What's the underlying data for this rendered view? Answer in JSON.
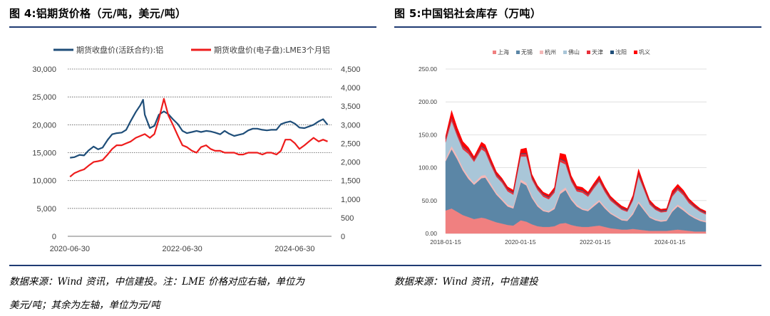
{
  "left": {
    "title": "图 4:铝期货价格（元/吨，美元/吨）",
    "note_line1": "数据来源：Wind 资讯，中信建投。注：LME 价格对应右轴，单位为",
    "note_line2": "美元/吨；其余为左轴，单位为元/吨"
  },
  "right": {
    "title": "图 5:中国铝社会库存（万吨）",
    "note": "数据来源：Wind 资讯，中信建投"
  },
  "chart_data": [
    {
      "type": "line",
      "title": "铝期货价格（元/吨，美元/吨）",
      "x_tick_labels": [
        "2020-06-30",
        "2022-06-30",
        "2024-06-30"
      ],
      "ylim_left": [
        0,
        30000
      ],
      "yticks_left": [
        "0",
        "5,000",
        "10,000",
        "15,000",
        "20,000",
        "25,000",
        "30,000"
      ],
      "ylim_right": [
        0,
        4500
      ],
      "yticks_right": [
        "0",
        "500",
        "1,000",
        "1,500",
        "2,000",
        "2,500",
        "3,000",
        "3,500",
        "4,000",
        "4,500"
      ],
      "grid": true,
      "legend_position": "top",
      "series": [
        {
          "name": "期货收盘价(活跃合约):铝",
          "axis": "left",
          "color": "#1f4e79",
          "x": [
            2020.5,
            2020.58,
            2020.67,
            2020.75,
            2020.83,
            2020.92,
            2021.0,
            2021.08,
            2021.17,
            2021.25,
            2021.33,
            2021.42,
            2021.5,
            2021.58,
            2021.67,
            2021.75,
            2021.8,
            2021.83,
            2021.92,
            2022.0,
            2022.08,
            2022.17,
            2022.25,
            2022.33,
            2022.42,
            2022.5,
            2022.58,
            2022.67,
            2022.75,
            2022.83,
            2022.92,
            2023.0,
            2023.08,
            2023.17,
            2023.25,
            2023.33,
            2023.42,
            2023.5,
            2023.58,
            2023.67,
            2023.75,
            2023.83,
            2023.92,
            2024.0,
            2024.08,
            2024.17,
            2024.25,
            2024.33,
            2024.42,
            2024.5,
            2024.58,
            2024.67,
            2024.75,
            2024.83,
            2024.92,
            2025.0,
            2025.08
          ],
          "values": [
            14100,
            14200,
            14600,
            14500,
            15400,
            16100,
            15600,
            15900,
            17300,
            18300,
            18500,
            18600,
            19100,
            20700,
            22300,
            23500,
            24500,
            21800,
            19400,
            19800,
            21800,
            22400,
            21900,
            21000,
            20100,
            18900,
            18500,
            18700,
            18900,
            18700,
            18900,
            18800,
            18600,
            18300,
            18900,
            18400,
            18000,
            18200,
            18400,
            19000,
            19300,
            19300,
            19100,
            19000,
            19100,
            19100,
            20100,
            20400,
            20600,
            20200,
            19500,
            19400,
            19700,
            20000,
            20600,
            21000,
            20000
          ]
        },
        {
          "name": "期货收盘价(电子盘):LME3个月铝",
          "axis": "right",
          "color": "#ee1c1c",
          "x": [
            2020.5,
            2020.58,
            2020.67,
            2020.75,
            2020.83,
            2020.92,
            2021.0,
            2021.08,
            2021.17,
            2021.25,
            2021.33,
            2021.42,
            2021.5,
            2021.58,
            2021.67,
            2021.75,
            2021.83,
            2021.92,
            2022.0,
            2022.08,
            2022.17,
            2022.25,
            2022.33,
            2022.42,
            2022.5,
            2022.58,
            2022.67,
            2022.75,
            2022.83,
            2022.92,
            2023.0,
            2023.08,
            2023.17,
            2023.25,
            2023.33,
            2023.42,
            2023.5,
            2023.58,
            2023.67,
            2023.75,
            2023.83,
            2023.92,
            2024.0,
            2024.08,
            2024.17,
            2024.25,
            2024.33,
            2024.42,
            2024.5,
            2024.58,
            2024.67,
            2024.75,
            2024.83,
            2024.92,
            2025.0,
            2025.08
          ],
          "values": [
            1600,
            1700,
            1760,
            1800,
            1900,
            2000,
            2020,
            2050,
            2200,
            2350,
            2450,
            2450,
            2500,
            2550,
            2650,
            2700,
            2750,
            2650,
            2750,
            3150,
            3700,
            3250,
            3000,
            2700,
            2450,
            2400,
            2300,
            2250,
            2400,
            2450,
            2350,
            2300,
            2300,
            2250,
            2250,
            2250,
            2200,
            2200,
            2250,
            2250,
            2250,
            2200,
            2250,
            2250,
            2200,
            2300,
            2600,
            2600,
            2500,
            2350,
            2450,
            2550,
            2650,
            2550,
            2600,
            2550
          ]
        }
      ]
    },
    {
      "type": "area",
      "stacked": true,
      "title": "中国铝社会库存（万吨）",
      "x_tick_labels": [
        "2018-01-15",
        "2020-01-15",
        "2022-01-15",
        "2024-01-15"
      ],
      "ylim": [
        0,
        250
      ],
      "yticks": [
        "0.00",
        "50.00",
        "100.00",
        "150.00",
        "200.00",
        "250.00"
      ],
      "grid": true,
      "legend_position": "top",
      "x": [
        2018.04,
        2018.2,
        2018.35,
        2018.5,
        2018.65,
        2018.8,
        2019.0,
        2019.1,
        2019.25,
        2019.4,
        2019.55,
        2019.7,
        2019.85,
        2020.05,
        2020.2,
        2020.35,
        2020.5,
        2020.65,
        2020.8,
        2020.95,
        2021.1,
        2021.25,
        2021.4,
        2021.55,
        2021.7,
        2021.85,
        2022.0,
        2022.15,
        2022.3,
        2022.45,
        2022.6,
        2022.75,
        2022.9,
        2023.05,
        2023.2,
        2023.35,
        2023.5,
        2023.65,
        2023.8,
        2023.95,
        2024.1,
        2024.25,
        2024.4,
        2024.55,
        2024.7,
        2024.85,
        2025.0
      ],
      "series": [
        {
          "name": "上海",
          "color": "#f08080",
          "values": [
            35,
            38,
            33,
            28,
            25,
            22,
            24,
            23,
            20,
            17,
            15,
            13,
            12,
            20,
            18,
            14,
            11,
            10,
            10,
            11,
            15,
            16,
            13,
            11,
            10,
            10,
            11,
            12,
            10,
            8,
            7,
            6,
            6,
            7,
            6,
            5,
            4,
            4,
            4,
            4,
            5,
            6,
            5,
            4,
            3,
            3,
            3
          ]
        },
        {
          "name": "无锡",
          "color": "#5b86a6",
          "values": [
            75,
            90,
            80,
            68,
            58,
            52,
            60,
            62,
            52,
            42,
            35,
            28,
            26,
            58,
            55,
            40,
            30,
            24,
            22,
            26,
            45,
            50,
            38,
            30,
            26,
            24,
            30,
            36,
            28,
            22,
            18,
            14,
            13,
            22,
            40,
            30,
            20,
            16,
            14,
            15,
            28,
            35,
            30,
            24,
            20,
            16,
            14
          ]
        },
        {
          "name": "杭州",
          "color": "#f4b8b8",
          "values": [
            4,
            5,
            5,
            4,
            4,
            3,
            4,
            4,
            4,
            3,
            3,
            3,
            3,
            4,
            4,
            3,
            3,
            2,
            2,
            3,
            4,
            4,
            3,
            3,
            2,
            2,
            3,
            3,
            3,
            2,
            2,
            2,
            2,
            3,
            3,
            3,
            2,
            2,
            2,
            2,
            3,
            3,
            3,
            2,
            2,
            2,
            2
          ]
        },
        {
          "name": "佛山",
          "color": "#a9c6d8",
          "values": [
            25,
            38,
            30,
            28,
            34,
            32,
            40,
            35,
            28,
            24,
            24,
            20,
            18,
            35,
            40,
            25,
            22,
            20,
            18,
            22,
            45,
            35,
            25,
            20,
            24,
            20,
            24,
            28,
            22,
            18,
            16,
            14,
            12,
            18,
            38,
            28,
            18,
            14,
            12,
            12,
            20,
            22,
            20,
            16,
            14,
            12,
            10
          ]
        },
        {
          "name": "天津",
          "color": "#e8303a",
          "values": [
            5,
            5,
            4,
            4,
            4,
            3,
            4,
            4,
            4,
            3,
            3,
            3,
            3,
            4,
            4,
            3,
            3,
            3,
            3,
            3,
            4,
            4,
            3,
            3,
            3,
            3,
            3,
            3,
            3,
            3,
            2,
            2,
            2,
            3,
            4,
            3,
            3,
            2,
            2,
            2,
            3,
            3,
            3,
            3,
            2,
            2,
            2
          ]
        },
        {
          "name": "沈阳",
          "color": "#1f4e79",
          "values": [
            1,
            1,
            1,
            1,
            1,
            1,
            1,
            1,
            1,
            1,
            1,
            1,
            1,
            1,
            1,
            1,
            1,
            1,
            1,
            1,
            1,
            1,
            1,
            1,
            1,
            1,
            1,
            1,
            1,
            1,
            1,
            1,
            1,
            1,
            1,
            1,
            1,
            1,
            1,
            1,
            1,
            1,
            1,
            1,
            1,
            1,
            1
          ]
        },
        {
          "name": "巩义",
          "color": "#ff0000",
          "values": [
            3,
            10,
            8,
            7,
            5,
            4,
            6,
            6,
            5,
            4,
            3,
            3,
            3,
            6,
            8,
            4,
            3,
            3,
            3,
            4,
            8,
            10,
            5,
            4,
            4,
            3,
            4,
            5,
            4,
            3,
            3,
            3,
            2,
            4,
            6,
            4,
            3,
            3,
            2,
            2,
            5,
            5,
            4,
            3,
            3,
            2,
            2
          ]
        }
      ]
    }
  ]
}
